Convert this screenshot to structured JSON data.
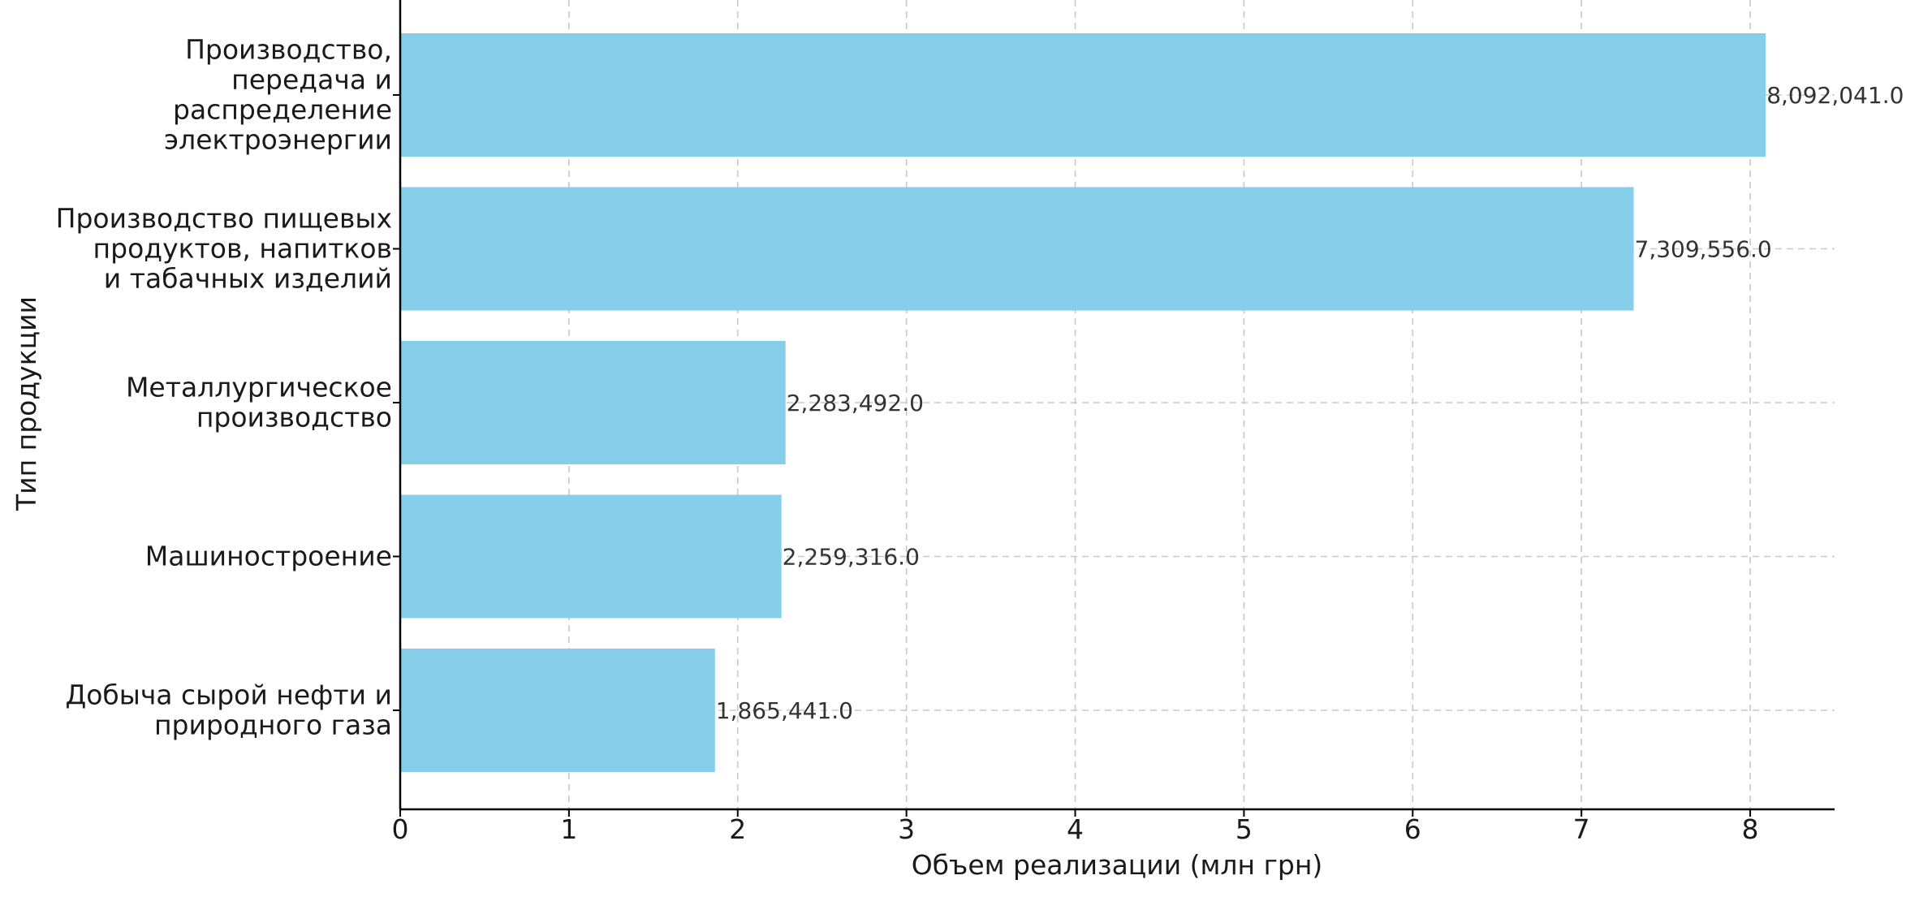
{
  "chart_data": {
    "type": "bar",
    "orientation": "horizontal",
    "title": "",
    "xlabel": "Объем реализации (млн грн)",
    "ylabel": "Тип продукции",
    "xlim": [
      0,
      8.5
    ],
    "xticks": [
      "0",
      "1",
      "2",
      "3",
      "4",
      "5",
      "6",
      "7",
      "8"
    ],
    "grid": true,
    "bar_color": "#87CEEB",
    "categories": [
      [
        "Производство,",
        "передача и",
        "распределение",
        "электроэнергии"
      ],
      [
        "Производство пищевых",
        "продуктов, напитков",
        "и табачных изделий"
      ],
      [
        "Металлургическое",
        "производство"
      ],
      [
        "Машиностроение"
      ],
      [
        "Добыча сырой нефти и",
        "природного газа"
      ]
    ],
    "values": [
      8.092041,
      7.309556,
      2.283492,
      2.259316,
      1.865441
    ],
    "value_labels": [
      "8,092,041.0",
      "7,309,556.0",
      "2,283,492.0",
      "2,259,316.0",
      "1,865,441.0"
    ]
  }
}
